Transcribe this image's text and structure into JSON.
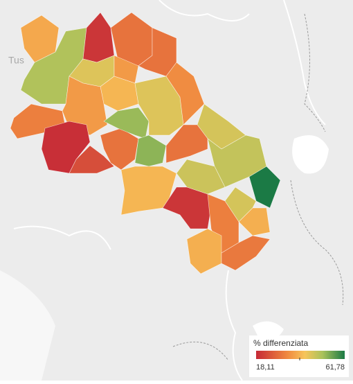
{
  "map_label": "Tus",
  "legend": {
    "title": "% differenziata",
    "min": {
      "value": 18.11,
      "label": "18,11"
    },
    "max": {
      "value": 61.78,
      "label": "61,78"
    }
  },
  "regions": [
    38,
    50,
    20,
    30,
    30,
    45,
    36,
    40,
    32,
    36,
    19,
    24,
    30,
    52,
    53,
    45,
    34,
    46,
    30,
    48,
    40,
    47,
    20,
    62,
    46,
    32,
    39,
    39,
    31
  ]
}
